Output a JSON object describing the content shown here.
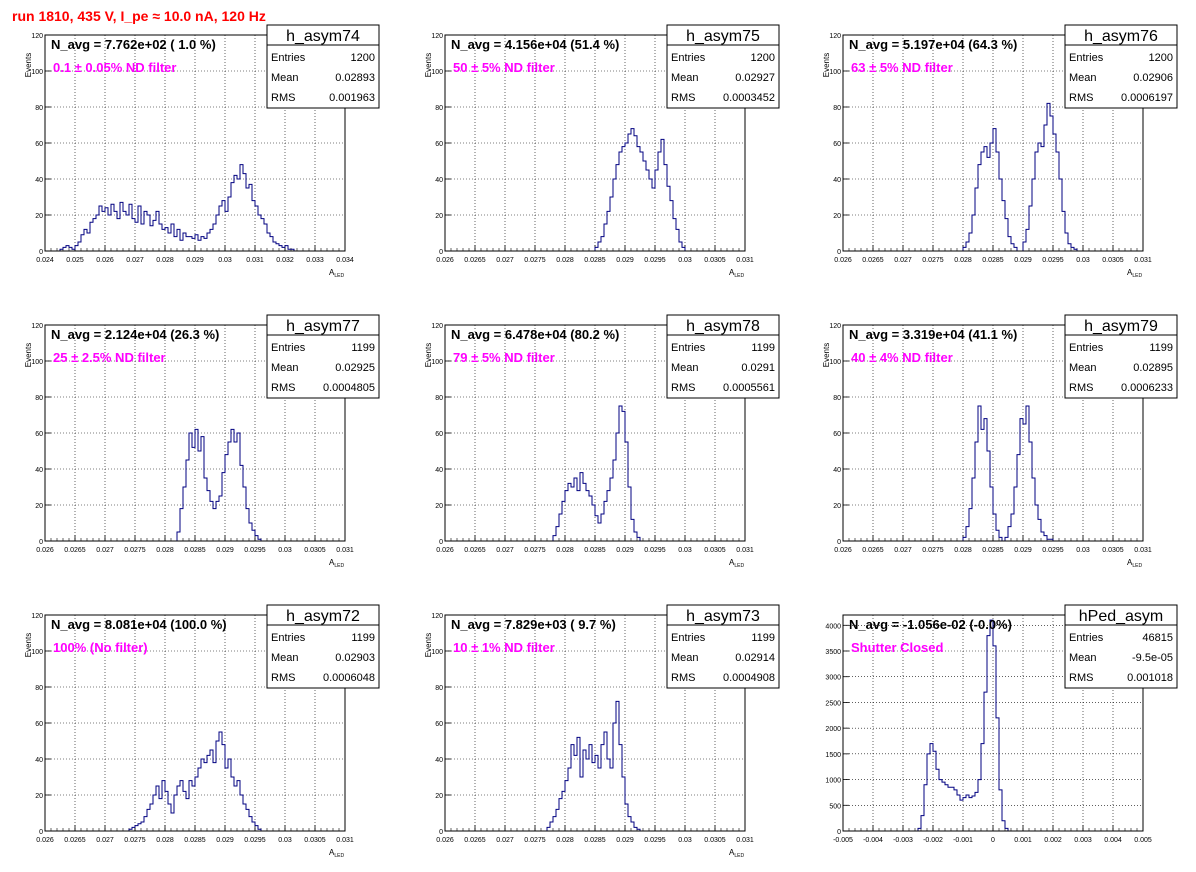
{
  "page": {
    "title": "run 1810,   435 V, I_pe ≈ 10.0 nA, 120 Hz"
  },
  "colors": {
    "title": "#ff0000",
    "histogram": "#000080",
    "annotation": "#ff00ff",
    "grid": "#000000"
  },
  "chart_data": [
    {
      "type": "histogram",
      "name": "h_asym74",
      "navg": "N_avg = 7.762e+02 ( 1.0 %)",
      "filter": "0.1 ± 0.05% ND filter",
      "stats": {
        "entries": "1200",
        "mean": "0.02893",
        "rms": "0.001963"
      },
      "xlabel": "A",
      "xlabel_sub": "LED",
      "ylabel": "Events",
      "xlim": [
        0.024,
        0.034
      ],
      "ylim": [
        0,
        120
      ],
      "xticks": [
        "0.024",
        "0.025",
        "0.026",
        "0.027",
        "0.028",
        "0.029",
        "0.03",
        "0.031",
        "0.032",
        "0.033",
        "0.034"
      ],
      "yticks": [
        "0",
        "20",
        "40",
        "60",
        "80",
        "100",
        "120"
      ],
      "x_start": 0.0245,
      "bin_width": 0.0001,
      "values": [
        1,
        2,
        3,
        2,
        1,
        3,
        5,
        9,
        12,
        10,
        16,
        18,
        20,
        25,
        22,
        24,
        20,
        26,
        22,
        18,
        27,
        22,
        20,
        26,
        18,
        16,
        25,
        15,
        22,
        20,
        14,
        17,
        22,
        15,
        12,
        13,
        10,
        15,
        8,
        12,
        6,
        10,
        8,
        8,
        7,
        9,
        6,
        8,
        7,
        10,
        12,
        15,
        20,
        25,
        28,
        22,
        30,
        38,
        42,
        40,
        48,
        43,
        35,
        37,
        28,
        25,
        20,
        18,
        15,
        10,
        8,
        5,
        4,
        3,
        2,
        3,
        1,
        1,
        0,
        0
      ]
    },
    {
      "type": "histogram",
      "name": "h_asym75",
      "navg": "N_avg = 4.156e+04 (51.4 %)",
      "filter": "50 ± 5% ND filter",
      "stats": {
        "entries": "1200",
        "mean": "0.02927",
        "rms": "0.0003452"
      },
      "xlabel": "A",
      "xlabel_sub": "LED",
      "ylabel": "Events",
      "xlim": [
        0.026,
        0.031
      ],
      "ylim": [
        0,
        120
      ],
      "xticks": [
        "0.026",
        "0.0265",
        "0.027",
        "0.0275",
        "0.028",
        "0.0285",
        "0.029",
        "0.0295",
        "0.03",
        "0.0305",
        "0.031"
      ],
      "yticks": [
        "0",
        "20",
        "40",
        "60",
        "80",
        "100",
        "120"
      ],
      "x_start": 0.0285,
      "bin_width": 5e-05,
      "values": [
        2,
        5,
        8,
        15,
        22,
        30,
        40,
        48,
        55,
        58,
        60,
        65,
        68,
        64,
        58,
        55,
        50,
        45,
        40,
        35,
        45,
        55,
        62,
        48,
        36,
        28,
        18,
        12,
        5,
        2
      ]
    },
    {
      "type": "histogram",
      "name": "h_asym76",
      "navg": "N_avg = 5.197e+04 (64.3 %)",
      "filter": "63 ± 5% ND filter",
      "stats": {
        "entries": "1200",
        "mean": "0.02906",
        "rms": "0.0006197"
      },
      "xlabel": "A",
      "xlabel_sub": "LED",
      "ylabel": "Events",
      "xlim": [
        0.026,
        0.031
      ],
      "ylim": [
        0,
        120
      ],
      "xticks": [
        "0.026",
        "0.0265",
        "0.027",
        "0.0275",
        "0.028",
        "0.0285",
        "0.029",
        "0.0295",
        "0.03",
        "0.0305",
        "0.031"
      ],
      "yticks": [
        "0",
        "20",
        "40",
        "60",
        "80",
        "100",
        "120"
      ],
      "x_start": 0.028,
      "bin_width": 5e-05,
      "values": [
        2,
        5,
        10,
        20,
        35,
        48,
        55,
        58,
        52,
        60,
        68,
        55,
        40,
        28,
        18,
        8,
        4,
        2,
        0,
        0,
        5,
        12,
        25,
        40,
        55,
        60,
        58,
        70,
        82,
        75,
        65,
        55,
        40,
        22,
        10,
        4,
        2,
        1
      ]
    },
    {
      "type": "histogram",
      "name": "h_asym77",
      "navg": "N_avg = 2.124e+04 (26.3 %)",
      "filter": "25 ± 2.5% ND filter",
      "stats": {
        "entries": "1199",
        "mean": "0.02925",
        "rms": "0.0004805"
      },
      "xlabel": "A",
      "xlabel_sub": "LED",
      "ylabel": "Events",
      "xlim": [
        0.026,
        0.031
      ],
      "ylim": [
        0,
        120
      ],
      "xticks": [
        "0.026",
        "0.0265",
        "0.027",
        "0.0275",
        "0.028",
        "0.0285",
        "0.029",
        "0.0295",
        "0.03",
        "0.0305",
        "0.031"
      ],
      "yticks": [
        "0",
        "20",
        "40",
        "60",
        "80",
        "100",
        "120"
      ],
      "x_start": 0.0282,
      "bin_width": 5e-05,
      "values": [
        5,
        18,
        30,
        45,
        60,
        52,
        62,
        50,
        58,
        35,
        28,
        22,
        18,
        22,
        25,
        38,
        48,
        55,
        62,
        55,
        60,
        42,
        30,
        18,
        10,
        6,
        3,
        1
      ]
    },
    {
      "type": "histogram",
      "name": "h_asym78",
      "navg": "N_avg = 6.478e+04 (80.2 %)",
      "filter": "79 ± 5% ND filter",
      "stats": {
        "entries": "1199",
        "mean": "0.0291",
        "rms": "0.0005561"
      },
      "xlabel": "A",
      "xlabel_sub": "LED",
      "ylabel": "Events",
      "xlim": [
        0.026,
        0.031
      ],
      "ylim": [
        0,
        120
      ],
      "xticks": [
        "0.026",
        "0.0265",
        "0.027",
        "0.0275",
        "0.028",
        "0.0285",
        "0.029",
        "0.0295",
        "0.03",
        "0.0305",
        "0.031"
      ],
      "yticks": [
        "0",
        "20",
        "40",
        "60",
        "80",
        "100",
        "120"
      ],
      "x_start": 0.0278,
      "bin_width": 5e-05,
      "values": [
        3,
        8,
        15,
        22,
        28,
        32,
        30,
        35,
        28,
        38,
        32,
        28,
        25,
        20,
        14,
        10,
        15,
        22,
        28,
        35,
        45,
        60,
        75,
        72,
        55,
        30,
        12,
        5,
        2
      ]
    },
    {
      "type": "histogram",
      "name": "h_asym79",
      "navg": "N_avg = 3.319e+04 (41.1 %)",
      "filter": "40 ± 4% ND filter",
      "stats": {
        "entries": "1199",
        "mean": "0.02895",
        "rms": "0.0006233"
      },
      "xlabel": "A",
      "xlabel_sub": "LED",
      "ylabel": "Events",
      "xlim": [
        0.026,
        0.031
      ],
      "ylim": [
        0,
        120
      ],
      "xticks": [
        "0.026",
        "0.0265",
        "0.027",
        "0.0275",
        "0.028",
        "0.0285",
        "0.029",
        "0.0295",
        "0.03",
        "0.0305",
        "0.031"
      ],
      "yticks": [
        "0",
        "20",
        "40",
        "60",
        "80",
        "100",
        "120"
      ],
      "x_start": 0.028,
      "bin_width": 5e-05,
      "values": [
        2,
        8,
        18,
        35,
        55,
        75,
        62,
        68,
        50,
        30,
        15,
        6,
        2,
        0,
        2,
        8,
        15,
        30,
        48,
        68,
        65,
        75,
        55,
        35,
        20,
        12,
        5,
        3,
        1,
        1
      ]
    },
    {
      "type": "histogram",
      "name": "h_asym72",
      "navg": "N_avg = 8.081e+04 (100.0 %)",
      "filter": "100% (No filter)",
      "stats": {
        "entries": "1199",
        "mean": "0.02903",
        "rms": "0.0006048"
      },
      "xlabel": "A",
      "xlabel_sub": "LED",
      "ylabel": "Events",
      "xlim": [
        0.026,
        0.031
      ],
      "ylim": [
        0,
        120
      ],
      "xticks": [
        "0.026",
        "0.0265",
        "0.027",
        "0.0275",
        "0.028",
        "0.0285",
        "0.029",
        "0.0295",
        "0.03",
        "0.0305",
        "0.031"
      ],
      "yticks": [
        "0",
        "20",
        "40",
        "60",
        "80",
        "100",
        "120"
      ],
      "x_start": 0.0274,
      "bin_width": 5e-05,
      "values": [
        1,
        2,
        3,
        4,
        5,
        8,
        12,
        15,
        20,
        25,
        18,
        28,
        22,
        15,
        10,
        20,
        25,
        28,
        22,
        18,
        28,
        25,
        30,
        35,
        40,
        38,
        42,
        45,
        38,
        50,
        55,
        48,
        35,
        40,
        30,
        25,
        28,
        20,
        15,
        12,
        8,
        5,
        3,
        1
      ]
    },
    {
      "type": "histogram",
      "name": "h_asym73",
      "navg": "N_avg = 7.829e+03 ( 9.7 %)",
      "filter": "10 ± 1% ND filter",
      "stats": {
        "entries": "1199",
        "mean": "0.02914",
        "rms": "0.0004908"
      },
      "xlabel": "A",
      "xlabel_sub": "LED",
      "ylabel": "Events",
      "xlim": [
        0.026,
        0.031
      ],
      "ylim": [
        0,
        120
      ],
      "xticks": [
        "0.026",
        "0.0265",
        "0.027",
        "0.0275",
        "0.028",
        "0.0285",
        "0.029",
        "0.0295",
        "0.03",
        "0.0305",
        "0.031"
      ],
      "yticks": [
        "0",
        "20",
        "40",
        "60",
        "80",
        "100",
        "120"
      ],
      "x_start": 0.0277,
      "bin_width": 5e-05,
      "values": [
        2,
        5,
        8,
        12,
        18,
        22,
        28,
        35,
        48,
        42,
        52,
        30,
        45,
        40,
        48,
        38,
        42,
        35,
        48,
        55,
        40,
        35,
        60,
        72,
        48,
        30,
        15,
        8,
        5,
        2,
        1
      ]
    },
    {
      "type": "histogram",
      "name": "hPed_asym",
      "navg": "N_avg = -1.056e-02 (-0.0%)",
      "filter": "Shutter Closed",
      "stats": {
        "entries": "46815",
        "mean": "-9.5e-05",
        "rms": "0.001018"
      },
      "xlabel": "",
      "xlabel_sub": "",
      "ylabel": "",
      "xlim": [
        -0.005,
        0.005
      ],
      "ylim": [
        0,
        4200
      ],
      "xticks": [
        "-0.005",
        "-0.004",
        "-0.003",
        "-0.002",
        "-0.001",
        "0",
        "0.001",
        "0.002",
        "0.003",
        "0.004",
        "0.005"
      ],
      "ytick_values": [
        0,
        500,
        1000,
        1500,
        2000,
        2500,
        3000,
        3500,
        4000
      ],
      "yticks": [
        "0",
        "500",
        "1000",
        "1500",
        "2000",
        "2500",
        "3000",
        "3500",
        "4000"
      ],
      "x_start": -0.0025,
      "bin_width": 0.0001,
      "values": [
        50,
        300,
        900,
        1500,
        1700,
        1550,
        1200,
        1000,
        950,
        900,
        850,
        850,
        800,
        700,
        600,
        650,
        700,
        650,
        680,
        750,
        1000,
        1700,
        2700,
        3800,
        4100,
        3600,
        2200,
        800,
        200,
        50
      ]
    }
  ]
}
